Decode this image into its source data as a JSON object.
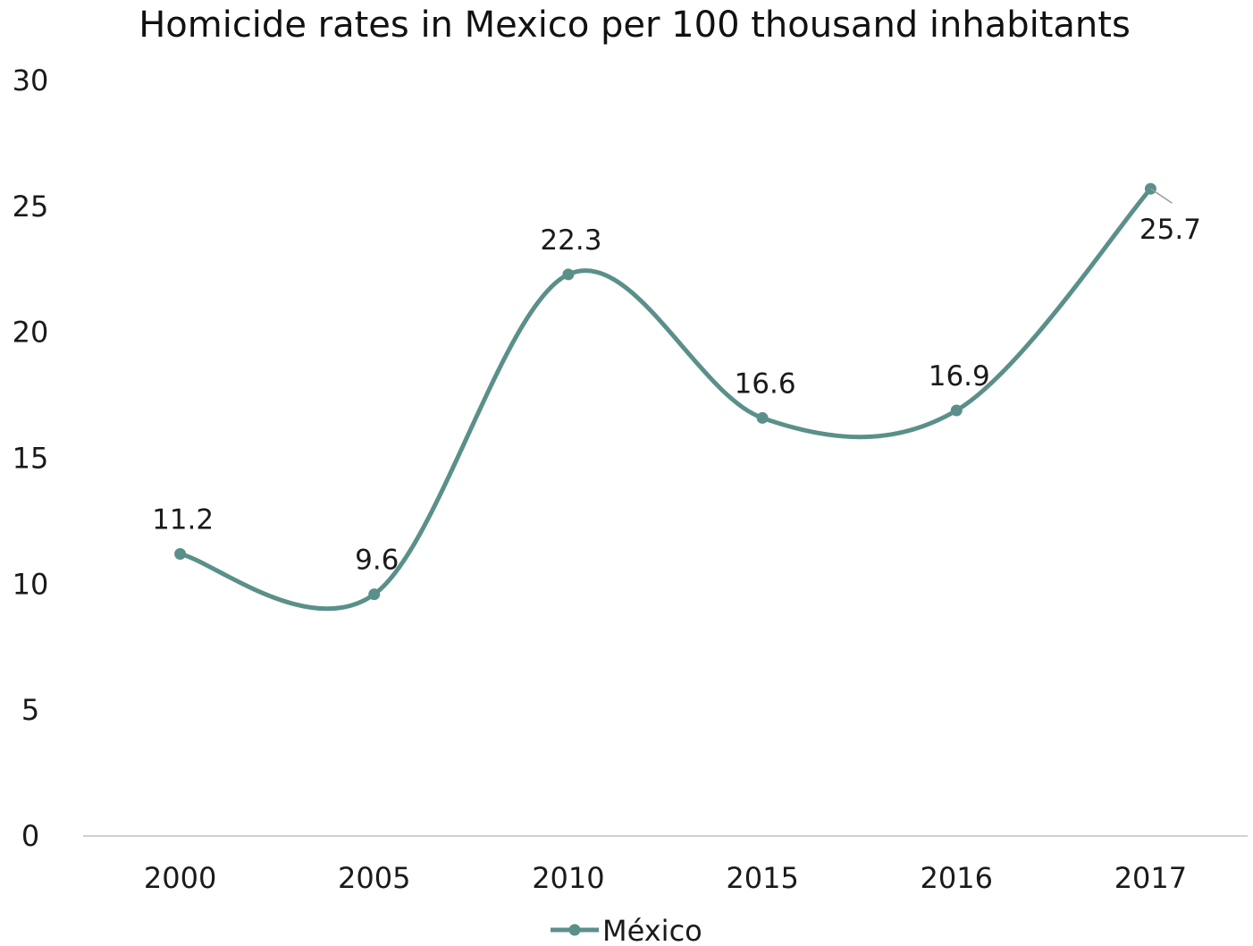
{
  "chart_data": {
    "type": "line",
    "title": "Homicide rates in Mexico per 100 thousand inhabitants",
    "categories": [
      "2000",
      "2005",
      "2010",
      "2015",
      "2016",
      "2017"
    ],
    "series": [
      {
        "name": "México",
        "values": [
          11.2,
          9.6,
          22.3,
          16.6,
          16.9,
          25.7
        ]
      }
    ],
    "data_labels": [
      "11.2",
      "9.6",
      "22.3",
      "16.6",
      "16.9",
      "25.7"
    ],
    "y_ticks": [
      "0",
      "5",
      "10",
      "15",
      "20",
      "25",
      "30"
    ],
    "ylim": [
      0,
      30
    ],
    "xlabel": "",
    "ylabel": "",
    "grid": false,
    "smooth": true,
    "legend_position": "bottom",
    "colors": {
      "series": "#5a9089",
      "axis": "#d0d0d0"
    }
  }
}
